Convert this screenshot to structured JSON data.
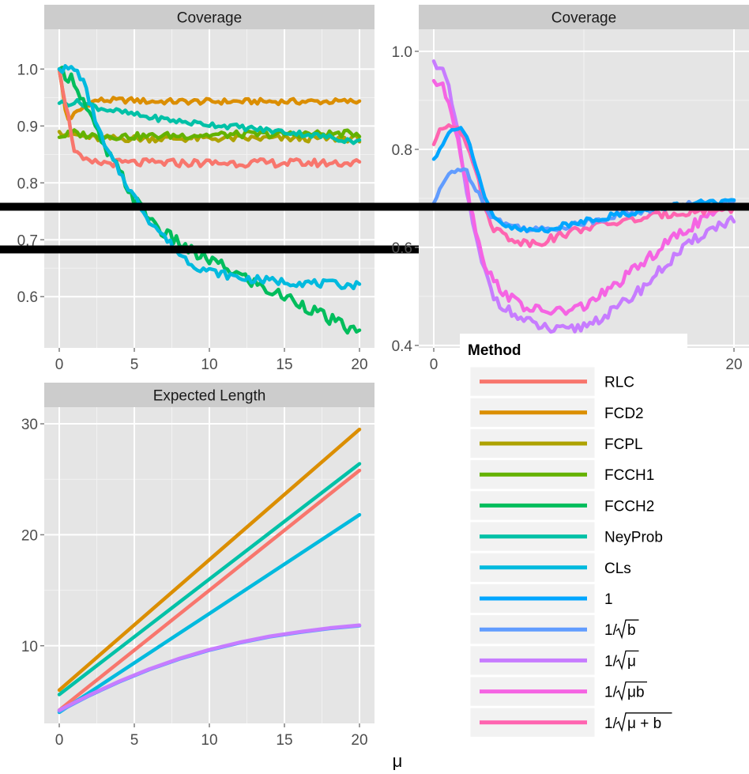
{
  "colors": {
    "panel_bg": "#e5e5e5",
    "strip_bg": "#cccccc",
    "grid": "#ffffff",
    "axis_text": "#4d4d4d",
    "reference_line": "#000000"
  },
  "x_axis_title": "μ",
  "legend": {
    "title": "Method",
    "entries": [
      {
        "key": "RLC",
        "label": "RLC",
        "color": "#F8766D"
      },
      {
        "key": "FCD2",
        "label": "FCD2",
        "color": "#DB8E00"
      },
      {
        "key": "FCPL",
        "label": "FCPL",
        "color": "#AEA200"
      },
      {
        "key": "FCCH1",
        "label": "FCCH1",
        "color": "#64B200"
      },
      {
        "key": "FCCH2",
        "label": "FCCH2",
        "color": "#00BD5C"
      },
      {
        "key": "NeyProb",
        "label": "NeyProb",
        "color": "#00C1A7"
      },
      {
        "key": "CLs",
        "label": "CLs",
        "color": "#00BADE"
      },
      {
        "key": "one",
        "label": "1",
        "color": "#00A6FF"
      },
      {
        "key": "inv_sqrt_b",
        "label": "1/√b",
        "color": "#619CFF",
        "prefix": "1/",
        "radicand": "b"
      },
      {
        "key": "inv_sqrt_mu",
        "label": "1/√μ",
        "color": "#C77CFF",
        "prefix": "1/",
        "radicand": "μ"
      },
      {
        "key": "inv_sqrt_mub",
        "label": "1/√(μb)",
        "color": "#F564E3",
        "prefix": "1/",
        "radicand": "μb"
      },
      {
        "key": "inv_sqrt_mu_plus_b",
        "label": "1/√(μ+b)",
        "color": "#FF64B0",
        "prefix": "1/",
        "radicand": "μ + b"
      }
    ]
  },
  "chart_data": [
    {
      "type": "line",
      "title": "Coverage",
      "xlabel": "μ",
      "ylabel": "",
      "xlim": [
        -1,
        21
      ],
      "ylim": [
        0.51,
        1.07
      ],
      "x_ticks": [
        0,
        5,
        10,
        15,
        20
      ],
      "y_ticks": [
        0.6,
        0.7,
        0.8,
        0.9,
        1.0
      ],
      "y_tick_labels": [
        "0.6",
        "0.7",
        "0.8",
        "0.9",
        "1.0"
      ],
      "reference_line": 0.683,
      "grid": true,
      "x": [
        0,
        0.5,
        1,
        1.5,
        2,
        2.5,
        3,
        4,
        5,
        6,
        7,
        8,
        9,
        10,
        12,
        14,
        16,
        18,
        20
      ],
      "series": [
        {
          "key": "FCD2",
          "values": [
            1.0,
            0.91,
            0.92,
            0.93,
            0.94,
            0.945,
            0.945,
            0.945,
            0.945,
            0.943,
            0.943,
            0.943,
            0.943,
            0.943,
            0.943,
            0.943,
            0.943,
            0.943,
            0.943
          ],
          "noise": 0.005
        },
        {
          "key": "FCPL",
          "values": [
            0.89,
            0.885,
            0.885,
            0.882,
            0.88,
            0.878,
            0.878,
            0.878,
            0.878,
            0.878,
            0.878,
            0.878,
            0.878,
            0.878,
            0.878,
            0.878,
            0.878,
            0.878,
            0.878
          ],
          "noise": 0.006
        },
        {
          "key": "FCCH1",
          "values": [
            0.88,
            0.885,
            0.888,
            0.885,
            0.884,
            0.882,
            0.882,
            0.882,
            0.882,
            0.882,
            0.883,
            0.883,
            0.884,
            0.884,
            0.885,
            0.885,
            0.886,
            0.886,
            0.887
          ],
          "noise": 0.006
        },
        {
          "key": "NeyProb",
          "values": [
            0.94,
            0.94,
            0.942,
            0.94,
            0.938,
            0.933,
            0.93,
            0.925,
            0.92,
            0.915,
            0.912,
            0.908,
            0.905,
            0.903,
            0.898,
            0.892,
            0.887,
            0.88,
            0.872
          ],
          "noise": 0.005
        },
        {
          "key": "RLC",
          "values": [
            1.0,
            0.93,
            0.86,
            0.84,
            0.835,
            0.835,
            0.835,
            0.835,
            0.835,
            0.835,
            0.835,
            0.835,
            0.835,
            0.835,
            0.835,
            0.835,
            0.835,
            0.835,
            0.835
          ],
          "noise": 0.007
        },
        {
          "key": "FCCH2",
          "values": [
            1.0,
            0.99,
            0.98,
            0.95,
            0.92,
            0.89,
            0.86,
            0.82,
            0.77,
            0.74,
            0.71,
            0.695,
            0.675,
            0.665,
            0.638,
            0.61,
            0.59,
            0.56,
            0.535
          ],
          "noise": 0.011
        },
        {
          "key": "CLs",
          "values": [
            1.0,
            1.0,
            1.0,
            0.985,
            0.945,
            0.905,
            0.865,
            0.82,
            0.775,
            0.735,
            0.705,
            0.675,
            0.655,
            0.645,
            0.633,
            0.628,
            0.625,
            0.622,
            0.62
          ],
          "noise": 0.007
        }
      ]
    },
    {
      "type": "line",
      "title": "Coverage",
      "xlabel": "μ",
      "ylabel": "",
      "xlim": [
        -1,
        21
      ],
      "ylim": [
        0.395,
        1.045
      ],
      "x_ticks": [
        0,
        20
      ],
      "y_ticks": [
        0.4,
        0.6,
        0.8,
        1.0
      ],
      "y_tick_labels": [
        "0.4",
        "0.6",
        "0.8",
        "1.0"
      ],
      "reference_line": 0.683,
      "grid": true,
      "x": [
        0,
        0.5,
        1,
        1.5,
        2,
        2.5,
        3,
        3.5,
        4,
        5,
        6,
        7,
        8,
        9,
        10,
        12,
        14,
        16,
        18,
        20
      ],
      "series": [
        {
          "key": "inv_sqrt_mu",
          "values": [
            0.98,
            0.97,
            0.92,
            0.85,
            0.75,
            0.66,
            0.59,
            0.54,
            0.5,
            0.47,
            0.45,
            0.44,
            0.43,
            0.43,
            0.44,
            0.47,
            0.52,
            0.58,
            0.63,
            0.66
          ],
          "noise": 0.011
        },
        {
          "key": "inv_sqrt_mub",
          "values": [
            0.94,
            0.93,
            0.9,
            0.84,
            0.76,
            0.68,
            0.61,
            0.56,
            0.53,
            0.5,
            0.48,
            0.47,
            0.47,
            0.47,
            0.48,
            0.52,
            0.57,
            0.62,
            0.66,
            0.68
          ],
          "noise": 0.011
        },
        {
          "key": "inv_sqrt_mu_plus_b",
          "values": [
            0.81,
            0.84,
            0.85,
            0.85,
            0.83,
            0.79,
            0.73,
            0.67,
            0.64,
            0.62,
            0.61,
            0.61,
            0.62,
            0.63,
            0.64,
            0.65,
            0.66,
            0.67,
            0.675,
            0.68
          ],
          "noise": 0.008
        },
        {
          "key": "inv_sqrt_b",
          "values": [
            0.69,
            0.72,
            0.75,
            0.76,
            0.76,
            0.74,
            0.71,
            0.68,
            0.66,
            0.645,
            0.64,
            0.635,
            0.64,
            0.645,
            0.65,
            0.665,
            0.675,
            0.685,
            0.69,
            0.69
          ],
          "noise": 0.007
        },
        {
          "key": "one",
          "values": [
            0.78,
            0.81,
            0.83,
            0.85,
            0.84,
            0.8,
            0.74,
            0.69,
            0.66,
            0.64,
            0.635,
            0.635,
            0.64,
            0.645,
            0.655,
            0.665,
            0.675,
            0.685,
            0.69,
            0.69
          ],
          "noise": 0.007
        }
      ]
    },
    {
      "type": "line",
      "title": "Expected Length",
      "xlabel": "μ",
      "ylabel": "",
      "xlim": [
        -1,
        21
      ],
      "ylim": [
        3,
        31.5
      ],
      "x_ticks": [
        0,
        5,
        10,
        15,
        20
      ],
      "y_ticks": [
        10,
        20,
        30
      ],
      "y_tick_labels": [
        "10",
        "20",
        "30"
      ],
      "grid": true,
      "x": [
        0,
        2,
        4,
        6,
        8,
        10,
        12,
        14,
        16,
        18,
        20
      ],
      "series": [
        {
          "key": "FCD2",
          "values": [
            6.0,
            8.35,
            10.7,
            13.05,
            15.4,
            17.75,
            20.1,
            22.45,
            24.8,
            27.15,
            29.5
          ]
        },
        {
          "key": "NeyProb",
          "values": [
            5.6,
            7.68,
            9.76,
            11.84,
            13.92,
            16.0,
            18.08,
            20.16,
            22.24,
            24.32,
            26.4
          ]
        },
        {
          "key": "RLC",
          "values": [
            4.2,
            6.36,
            8.52,
            10.68,
            12.84,
            15.0,
            17.16,
            19.32,
            21.48,
            23.64,
            25.8
          ]
        },
        {
          "key": "CLs",
          "values": [
            4.0,
            5.78,
            7.56,
            9.34,
            11.12,
            12.9,
            14.68,
            16.46,
            18.24,
            20.02,
            21.8
          ]
        },
        {
          "key": "inv_sqrt_b",
          "values": [
            4.1,
            5.5,
            6.75,
            7.85,
            8.8,
            9.6,
            10.25,
            10.8,
            11.2,
            11.55,
            11.8
          ]
        },
        {
          "key": "inv_sqrt_mu",
          "values": [
            4.2,
            5.55,
            6.8,
            7.9,
            8.85,
            9.65,
            10.3,
            10.85,
            11.25,
            11.6,
            11.85
          ]
        }
      ]
    }
  ]
}
